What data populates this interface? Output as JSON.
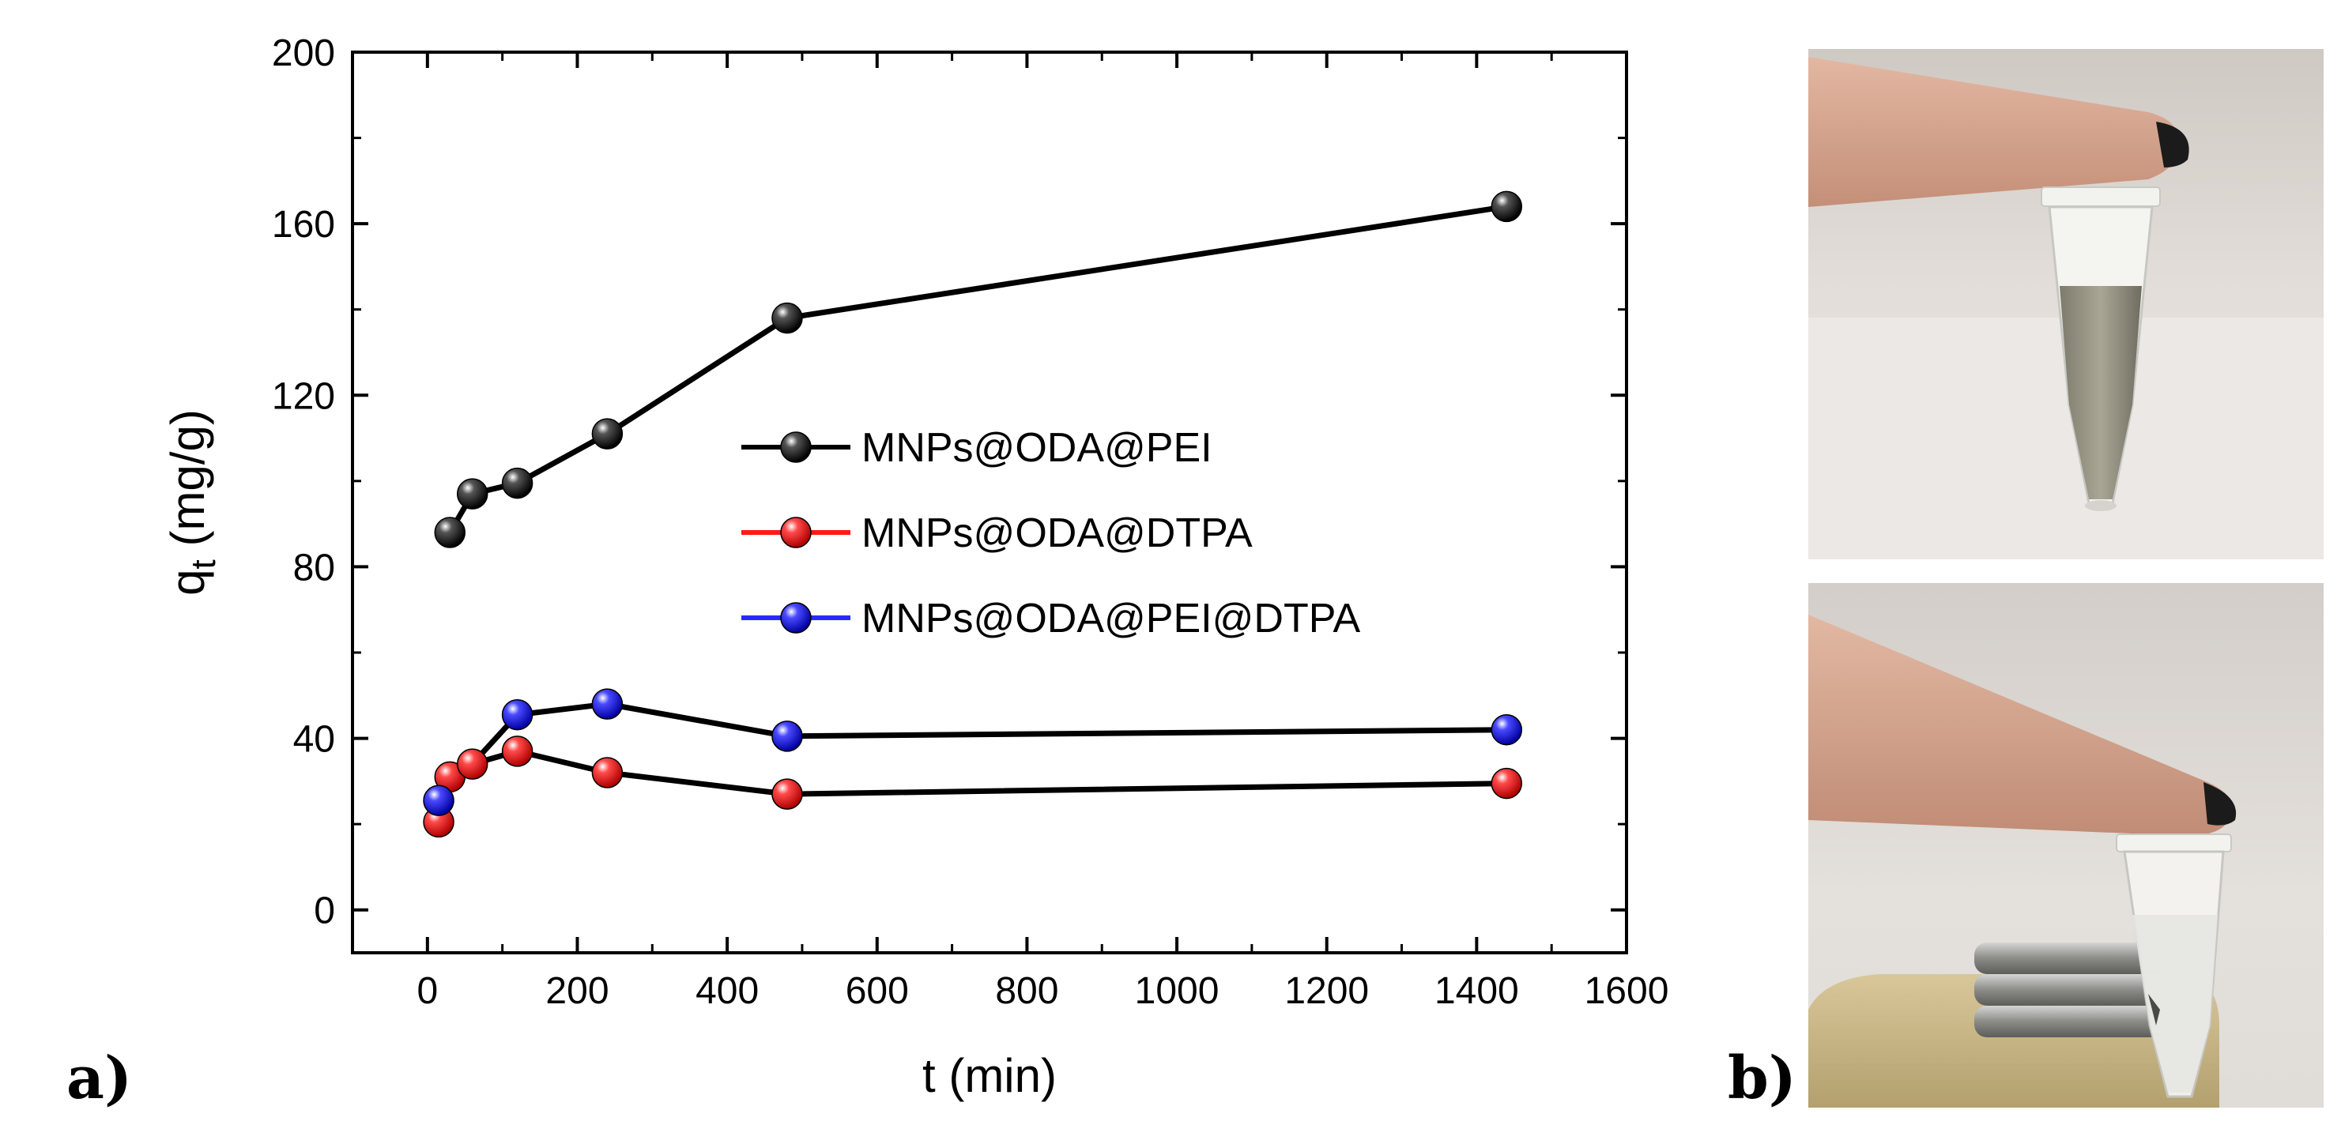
{
  "figure": {
    "panel_a_label": "a)",
    "panel_b_label": "b)"
  },
  "chart_data": {
    "type": "line",
    "xlabel": "t (min)",
    "ylabel_main": "q",
    "ylabel_sub": "t",
    "ylabel_unit": " (mg/g)",
    "xlim": [
      -100,
      1600
    ],
    "ylim": [
      -10,
      200
    ],
    "xticks": [
      0,
      200,
      400,
      600,
      800,
      1000,
      1200,
      1400,
      1600
    ],
    "yticks": [
      0,
      40,
      80,
      120,
      160,
      200
    ],
    "xtick_labels": [
      "0",
      "200",
      "400",
      "600",
      "800",
      "1000",
      "1200",
      "1400",
      "1600"
    ],
    "ytick_labels": [
      "0",
      "40",
      "80",
      "120",
      "160",
      "200"
    ],
    "legend_position": "center-right",
    "series": [
      {
        "name": "MNPs@ODA@PEI",
        "color": "#1a1a1a",
        "line_color": "#000000",
        "x": [
          30,
          60,
          120,
          240,
          480,
          1440
        ],
        "y": [
          88,
          97,
          99.5,
          111,
          138,
          164
        ]
      },
      {
        "name": "MNPs@ODA@DTPA",
        "color": "#ff1a1a",
        "line_color": "#000000",
        "x": [
          15,
          30,
          60,
          120,
          240,
          480,
          1440
        ],
        "y": [
          20.5,
          31,
          34,
          37,
          32,
          27,
          29.5
        ]
      },
      {
        "name": "MNPs@ODA@PEI@DTPA",
        "color": "#2a2aff",
        "line_color": "#000000",
        "x": [
          15,
          120,
          240,
          480,
          1440
        ],
        "y": [
          25.5,
          45.5,
          48,
          40.5,
          42
        ]
      }
    ]
  },
  "photos": {
    "top_caption": "",
    "bottom_caption": ""
  }
}
